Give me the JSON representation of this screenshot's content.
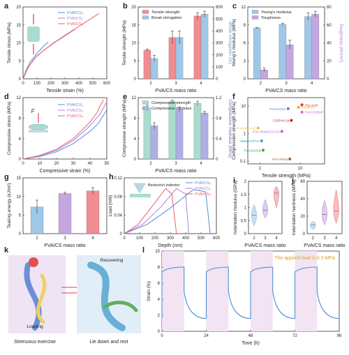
{
  "colors": {
    "c2": "#4f8fd6",
    "c3": "#b07fd6",
    "c4": "#e8606a",
    "blue": "#9ec7e8",
    "teal": "#a9dccf",
    "purple": "#b9a3e0",
    "red": "#f08c92"
  },
  "panels": {
    "a": {
      "letter": "a",
      "xlabel": "Tensile strain (%)",
      "ylabel": "Tensile stress (MPa)"
    },
    "b": {
      "letter": "b",
      "xlabel": "PVA/CS mass ratio",
      "ylabel": "Tensile strength (MPa)",
      "ylabel2": "Break elongation (%)"
    },
    "c": {
      "letter": "c",
      "xlabel": "PVA/CS mass ratio",
      "ylabel": "Young's modulus (MPa)",
      "ylabel2": "Toughness (MJ/m³)"
    },
    "d": {
      "letter": "d",
      "xlabel": "Compressive strain (%)",
      "ylabel": "Compressive stress (MPa)",
      "force_label": "F"
    },
    "e": {
      "letter": "e",
      "xlabel": "PVA/CS mass ratio",
      "ylabel": "Compressive strength (MPa)",
      "ylabel2": "Compressive modulus (MPa)"
    },
    "f": {
      "letter": "f",
      "xlabel": "Tensile strength (MPa)",
      "ylabel": "Compression strength (MPa)"
    },
    "g": {
      "letter": "g",
      "xlabel": "PVA/CS mass ratio",
      "ylabel": "Tearing energy (kJ/m²)"
    },
    "h": {
      "letter": "h",
      "xlabel": "Depth (nm)",
      "ylabel": "Load (mN)",
      "inset": "Berkovich indenter"
    },
    "i": {
      "letter": "i",
      "xlabel": "PVA/CS mass ratio",
      "ylabel": "Indentation modulus (GPa)"
    },
    "j": {
      "letter": "j",
      "xlabel": "PVA/CS mass ratio",
      "ylabel": "Indentation hardness (MPa)"
    },
    "k": {
      "letter": "k",
      "loading": "Loading",
      "recovering": "Recovering",
      "cap_left": "Strenuous exercise",
      "cap_right": "Lie down and rest"
    },
    "l": {
      "letter": "l",
      "xlabel": "Time (h)",
      "ylabel": "Strain (%)",
      "note": "The applied load is 0.3 MPa"
    }
  },
  "chart_data": [
    {
      "panel": "a",
      "type": "line",
      "xlim": [
        0,
        600
      ],
      "ylim": [
        0,
        20
      ],
      "xticks": [
        0,
        100,
        200,
        300,
        400,
        500,
        600
      ],
      "yticks": [
        0,
        5,
        10,
        15,
        20
      ],
      "series": [
        {
          "name": "PVA/CS₂",
          "color": "#4f8fd6",
          "x": [
            0,
            20,
            50,
            100,
            150,
            180
          ],
          "y": [
            0,
            2.2,
            4.6,
            7.1,
            9.2,
            10.2
          ]
        },
        {
          "name": "PVA/CS₃",
          "color": "#b07fd6",
          "x": [
            0,
            30,
            80,
            150,
            250,
            350,
            370
          ],
          "y": [
            0,
            2.8,
            5.6,
            8.0,
            10.7,
            13.2,
            13.7
          ]
        },
        {
          "name": "PVA/CS₄",
          "color": "#e8606a",
          "x": [
            0,
            40,
            100,
            200,
            300,
            400,
            500,
            545
          ],
          "y": [
            0,
            3.4,
            6.4,
            9.5,
            12.1,
            14.6,
            17.1,
            18.2
          ]
        }
      ]
    },
    {
      "panel": "b",
      "type": "bar",
      "categories": [
        "2",
        "3",
        "4"
      ],
      "ylim": [
        0,
        20
      ],
      "ylim2": [
        0,
        600
      ],
      "yticks": [
        0,
        5,
        10,
        15,
        20
      ],
      "yticks2": [
        0,
        100,
        200,
        300,
        400,
        500,
        600
      ],
      "series": [
        {
          "name": "Tensile strength",
          "color": "#f08c92",
          "values": [
            8,
            11.5,
            17.5
          ],
          "errors": [
            0.3,
            1.8,
            0.9
          ]
        },
        {
          "name": "Break elongation",
          "color": "#9ec7e8",
          "axis": "right",
          "values": [
            170,
            345,
            540
          ],
          "errors": [
            25,
            55,
            25
          ]
        }
      ]
    },
    {
      "panel": "c",
      "type": "bar",
      "categories": [
        "2",
        "3",
        "4"
      ],
      "ylim": [
        0,
        12
      ],
      "ylim2": [
        0,
        80
      ],
      "yticks": [
        0,
        3,
        6,
        9,
        12
      ],
      "yticks2": [
        0,
        20,
        40,
        60,
        80
      ],
      "series": [
        {
          "name": "Young's modulus",
          "color": "#9ec7e8",
          "values": [
            8.5,
            9.1,
            10.4
          ],
          "errors": [
            0.1,
            0.2,
            0.6
          ]
        },
        {
          "name": "Toughness",
          "color": "#c4a6e0",
          "axis": "right",
          "values": [
            10,
            38,
            72
          ],
          "errors": [
            2,
            5,
            3
          ]
        }
      ]
    },
    {
      "panel": "d",
      "type": "line",
      "xlim": [
        0,
        50
      ],
      "ylim": [
        0,
        12
      ],
      "xticks": [
        0,
        10,
        20,
        30,
        40,
        50
      ],
      "yticks": [
        0,
        4,
        8,
        12
      ],
      "series": [
        {
          "name": "PVA/CS₂",
          "color": "#4f8fd6",
          "x": [
            0,
            10,
            20,
            30,
            40,
            45,
            50
          ],
          "y": [
            0,
            0.5,
            1.4,
            3.0,
            5.4,
            7.0,
            9.6
          ]
        },
        {
          "name": "PVA/CS₃",
          "color": "#b07fd6",
          "x": [
            0,
            10,
            20,
            30,
            40,
            46,
            50
          ],
          "y": [
            0,
            0.6,
            1.7,
            3.6,
            6.5,
            8.8,
            11.2
          ]
        },
        {
          "name": "PVA/CS₄",
          "color": "#e8606a",
          "x": [
            0,
            10,
            20,
            30,
            40,
            44,
            48
          ],
          "y": [
            0,
            0.7,
            1.9,
            4.0,
            7.2,
            9.0,
            11.6
          ]
        }
      ]
    },
    {
      "panel": "e",
      "type": "bar",
      "categories": [
        "2",
        "3",
        "4"
      ],
      "ylim": [
        0,
        12
      ],
      "ylim2": [
        0,
        1.2
      ],
      "yticks": [
        0,
        4,
        8,
        12
      ],
      "yticks2": [
        0,
        0.4,
        0.8,
        1.2
      ],
      "series": [
        {
          "name": "Compressive strength",
          "color": "#a9dccf",
          "values": [
            10,
            11.2,
            10.9
          ],
          "errors": [
            0.5,
            0.3,
            0.4
          ]
        },
        {
          "name": "Compressive modulus",
          "color": "#b0aee6",
          "axis": "right",
          "values": [
            0.65,
            0.97,
            0.9
          ],
          "errors": [
            0.06,
            0.05,
            0.03
          ]
        }
      ]
    },
    {
      "panel": "f",
      "type": "scatter",
      "xscale": "log",
      "yscale": "log",
      "xlim": [
        0.5,
        40
      ],
      "ylim": [
        0.08,
        20
      ],
      "xticks": [
        1,
        10
      ],
      "yticks": [
        0.1,
        1,
        10
      ],
      "points": [
        {
          "label": "The work",
          "x": 11,
          "y": 11,
          "color": "#e03030"
        },
        {
          "label": "PBC/PVA",
          "x": 9,
          "y": 9,
          "color": "#f0a030"
        },
        {
          "label": "PVA/CS/SA",
          "x": 5,
          "y": 8,
          "color": "#5b7fd0"
        },
        {
          "label": "PVA/CE/BMT",
          "x": 11,
          "y": 6,
          "color": "#c070d0"
        },
        {
          "label": "CS/PVA-24",
          "x": 6,
          "y": 3,
          "color": "#c02020"
        },
        {
          "label": "PVA/dAm-AG",
          "x": 0.9,
          "y": 1.6,
          "color": "#f0c020"
        },
        {
          "label": "PVA-NH/NACC-C4",
          "x": 3.5,
          "y": 1.2,
          "color": "#c060c0"
        },
        {
          "label": "SNM/CS/PVA",
          "x": 1.1,
          "y": 0.55,
          "color": "#30a0c0"
        },
        {
          "label": "PVA/SA/Gly",
          "x": 1.2,
          "y": 0.25,
          "color": "#40a040"
        },
        {
          "label": "PVA-PANa",
          "x": 5.5,
          "y": 0.12,
          "color": "#a06030"
        }
      ]
    },
    {
      "panel": "g",
      "type": "bar",
      "categories": [
        "2",
        "3",
        "4"
      ],
      "ylim": [
        0,
        15
      ],
      "yticks": [
        0,
        5,
        10,
        15
      ],
      "series": [
        {
          "name": "Tearing energy",
          "values": [
            7.2,
            10.8,
            11.5
          ],
          "errors": [
            1.8,
            0.3,
            0.9
          ],
          "colors": [
            "#9ec7e8",
            "#c4a6e0",
            "#f08c92"
          ]
        }
      ]
    },
    {
      "panel": "h",
      "type": "line",
      "xlim": [
        0,
        600
      ],
      "ylim": [
        0,
        0.12
      ],
      "xticks": [
        0,
        100,
        200,
        300,
        400,
        500,
        600
      ],
      "yticks": [
        0,
        0.04,
        0.08,
        0.12
      ],
      "series": [
        {
          "name": "PVA/CS₂",
          "color": "#4f8fd6",
          "x": [
            0,
            150,
            300,
            450,
            530,
            560
          ],
          "y": [
            0,
            0.02,
            0.055,
            0.095,
            0.09,
            0
          ]
        },
        {
          "name": "PVA/CS₃",
          "color": "#b07fd6",
          "x": [
            0,
            120,
            240,
            340,
            400,
            420
          ],
          "y": [
            0,
            0.02,
            0.058,
            0.097,
            0.085,
            0
          ]
        },
        {
          "name": "PVA/CS₄",
          "color": "#e8606a",
          "x": [
            0,
            90,
            180,
            270,
            310,
            340
          ],
          "y": [
            0,
            0.02,
            0.058,
            0.097,
            0.085,
            0
          ]
        }
      ]
    },
    {
      "panel": "i",
      "type": "violin",
      "categories": [
        "2",
        "3",
        "4"
      ],
      "ylim": [
        0,
        2.0
      ],
      "yticks": [
        0,
        0.5,
        1.0,
        1.5,
        2.0
      ],
      "series": [
        {
          "name": "Indentation modulus",
          "colors": [
            "#9ec7e8",
            "#c4a6e0",
            "#f08c92"
          ],
          "ranges": [
            [
              0.3,
              1.1
            ],
            [
              0.6,
              1.3
            ],
            [
              1.0,
              1.8
            ]
          ],
          "medians": [
            0.7,
            0.9,
            1.55
          ]
        }
      ]
    },
    {
      "panel": "j",
      "type": "violin",
      "categories": [
        "2",
        "3",
        "4"
      ],
      "ylim": [
        0,
        60
      ],
      "yticks": [
        0,
        20,
        40,
        60
      ],
      "series": [
        {
          "name": "Indentation hardness",
          "colors": [
            "#9ec7e8",
            "#c4a6e0",
            "#f08c92"
          ],
          "ranges": [
            [
              5,
              14
            ],
            [
              10,
              38
            ],
            [
              12,
              50
            ]
          ],
          "medians": [
            10,
            22,
            26
          ]
        }
      ]
    },
    {
      "panel": "l",
      "type": "line",
      "xlim": [
        0,
        96
      ],
      "ylim": [
        0,
        10
      ],
      "xticks": [
        0,
        24,
        48,
        72,
        96
      ],
      "yticks": [
        0,
        2,
        4,
        6,
        8,
        10
      ],
      "loading_intervals": [
        [
          0,
          12
        ],
        [
          24,
          36
        ],
        [
          48,
          60
        ],
        [
          72,
          84
        ]
      ],
      "series": [
        {
          "name": "Strain",
          "color": "#4f8fd6",
          "loaded_strain": 8.0,
          "recovered_strain": 1.6
        }
      ]
    }
  ]
}
